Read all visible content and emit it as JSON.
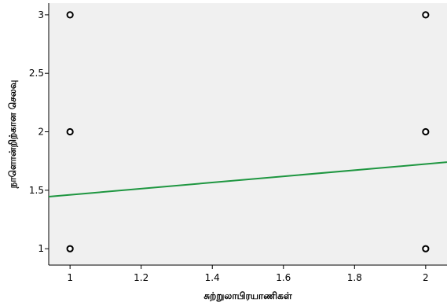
{
  "chart_data": {
    "type": "scatter",
    "xlabel": "சுற்றுலாபிரயாணிகள்",
    "ylabel": "நாளொன்றிற்கான செலவு",
    "xlim": [
      0.94,
      2.06
    ],
    "ylim": [
      0.86,
      3.1
    ],
    "x_ticks": [
      1,
      1.2,
      1.4,
      1.6,
      1.8,
      2
    ],
    "x_tick_labels": [
      "1",
      "1.2",
      "1.4",
      "1.6",
      "1.8",
      "2"
    ],
    "y_ticks": [
      1,
      1.5,
      2,
      2.5,
      3
    ],
    "y_tick_labels": [
      "1",
      "1.5",
      "2",
      "2.5",
      "3"
    ],
    "points": [
      {
        "x": 1,
        "y": 3
      },
      {
        "x": 1,
        "y": 2
      },
      {
        "x": 1,
        "y": 1
      },
      {
        "x": 2,
        "y": 3
      },
      {
        "x": 2,
        "y": 2
      },
      {
        "x": 2,
        "y": 1
      }
    ],
    "fit_line": {
      "x": [
        0.94,
        2.06
      ],
      "y": [
        1.445,
        1.74
      ]
    },
    "grid": false,
    "legend": "none"
  },
  "colors": {
    "plot_bg": "#f0f0f0",
    "fit_line": "#1e9640",
    "marker_stroke": "#000000",
    "marker_fill": "#ffffff",
    "axis": "#000000"
  }
}
